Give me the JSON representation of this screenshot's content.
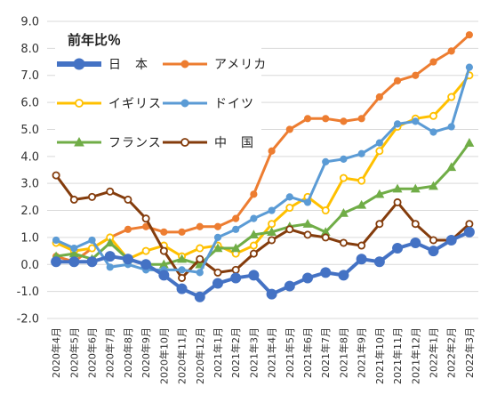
{
  "chart_data": {
    "type": "line",
    "title": "前年比％",
    "ylim": [
      -2.0,
      9.0
    ],
    "ytick_step": 1.0,
    "ytick_labels": [
      "-2.0",
      "-1.0",
      "0.0",
      "1.0",
      "2.0",
      "3.0",
      "4.0",
      "5.0",
      "6.0",
      "7.0",
      "8.0",
      "9.0"
    ],
    "grid": true,
    "legend_position": "top-left (inside plot, 3 rows × 2 columns)",
    "categories": [
      "2020年4月",
      "2020年5月",
      "2020年6月",
      "2020年7月",
      "2020年8月",
      "2020年9月",
      "2020年10月",
      "2020年11月",
      "2020年12月",
      "2021年1月",
      "2021年2月",
      "2021年3月",
      "2021年4月",
      "2021年5月",
      "2021年6月",
      "2021年7月",
      "2021年8月",
      "2021年9月",
      "2021年10月",
      "2021年11月",
      "2021年12月",
      "2022年1月",
      "2022年2月",
      "2022年3月"
    ],
    "series": [
      {
        "name": "日　本",
        "color": "#4472c4",
        "marker": "filled-circle",
        "values": [
          0.1,
          0.1,
          0.1,
          0.3,
          0.2,
          0.0,
          -0.4,
          -0.9,
          -1.2,
          -0.7,
          -0.5,
          -0.4,
          -1.1,
          -0.8,
          -0.5,
          -0.3,
          -0.4,
          0.2,
          0.1,
          0.6,
          0.8,
          0.5,
          0.9,
          1.2
        ]
      },
      {
        "name": "アメリカ",
        "color": "#ed7d31",
        "marker": "filled-circle",
        "values": [
          0.3,
          0.1,
          0.6,
          1.0,
          1.3,
          1.4,
          1.2,
          1.2,
          1.4,
          1.4,
          1.7,
          2.6,
          4.2,
          5.0,
          5.4,
          5.4,
          5.3,
          5.4,
          6.2,
          6.8,
          7.0,
          7.5,
          7.9,
          8.5
        ]
      },
      {
        "name": "イギリス",
        "color": "#ffc000",
        "marker": "open-circle",
        "values": [
          0.8,
          0.5,
          0.6,
          1.0,
          0.2,
          0.5,
          0.7,
          0.3,
          0.6,
          0.7,
          0.4,
          0.7,
          1.5,
          2.1,
          2.5,
          2.0,
          3.2,
          3.1,
          4.2,
          5.1,
          5.4,
          5.5,
          6.2,
          7.0
        ]
      },
      {
        "name": "ドイツ",
        "color": "#5b9bd5",
        "marker": "filled-circle",
        "values": [
          0.9,
          0.6,
          0.9,
          -0.1,
          0.0,
          -0.2,
          -0.2,
          -0.2,
          -0.3,
          1.0,
          1.3,
          1.7,
          2.0,
          2.5,
          2.3,
          3.8,
          3.9,
          4.1,
          4.5,
          5.2,
          5.3,
          4.9,
          5.1,
          7.3
        ]
      },
      {
        "name": "フランス",
        "color": "#70ad47",
        "marker": "triangle",
        "values": [
          0.3,
          0.4,
          0.2,
          0.8,
          0.2,
          0.0,
          0.0,
          0.2,
          0.0,
          0.6,
          0.6,
          1.1,
          1.2,
          1.4,
          1.5,
          1.2,
          1.9,
          2.2,
          2.6,
          2.8,
          2.8,
          2.9,
          3.6,
          4.5
        ]
      },
      {
        "name": "中　国",
        "color": "#843c0c",
        "marker": "open-circle",
        "values": [
          3.3,
          2.4,
          2.5,
          2.7,
          2.4,
          1.7,
          0.5,
          -0.5,
          0.2,
          -0.3,
          -0.2,
          0.4,
          0.9,
          1.3,
          1.1,
          1.0,
          0.8,
          0.7,
          1.5,
          2.3,
          1.5,
          0.9,
          0.9,
          1.5
        ]
      }
    ]
  }
}
